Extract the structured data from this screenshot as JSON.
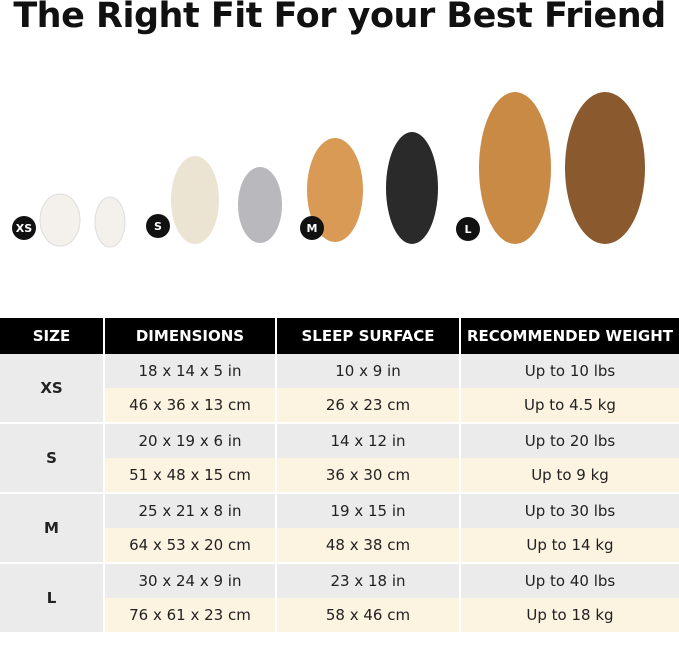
{
  "title": "The Right Fit For your Best Friend",
  "badges": [
    "XS",
    "S",
    "M",
    "L"
  ],
  "colors": {
    "header_bg": "#000000",
    "row_gray": "#ebebeb",
    "row_cream": "#fdf3e1"
  },
  "table": {
    "headers": [
      "SIZE",
      "DIMENSIONS",
      "SLEEP SURFACE",
      "RECOMMENDED WEIGHT"
    ],
    "rows": [
      {
        "size": "XS",
        "in": {
          "dim": "18 x 14 x 5 in",
          "surface": "10 x 9 in",
          "weight": "Up to 10 lbs"
        },
        "cm": {
          "dim": "46 x 36 x 13 cm",
          "surface": "26 x 23 cm",
          "weight": "Up to 4.5 kg"
        }
      },
      {
        "size": "S",
        "in": {
          "dim": "20 x 19 x 6 in",
          "surface": "14 x 12 in",
          "weight": "Up to 20 lbs"
        },
        "cm": {
          "dim": "51 x 48 x 15 cm",
          "surface": "36 x 30 cm",
          "weight": "Up to 9 kg"
        }
      },
      {
        "size": "M",
        "in": {
          "dim": "25 x 21 x 8 in",
          "surface": "19 x 15 in",
          "weight": "Up to 30 lbs"
        },
        "cm": {
          "dim": "64 x 53 x 20 cm",
          "surface": "48 x 38 cm",
          "weight": "Up to 14 kg"
        }
      },
      {
        "size": "L",
        "in": {
          "dim": "30 x 24 x 9 in",
          "surface": "23 x 18 in",
          "weight": "Up to 40 lbs"
        },
        "cm": {
          "dim": "76 x 61 x 23 cm",
          "surface": "58 x 46 cm",
          "weight": "Up to 18 kg"
        }
      }
    ]
  }
}
